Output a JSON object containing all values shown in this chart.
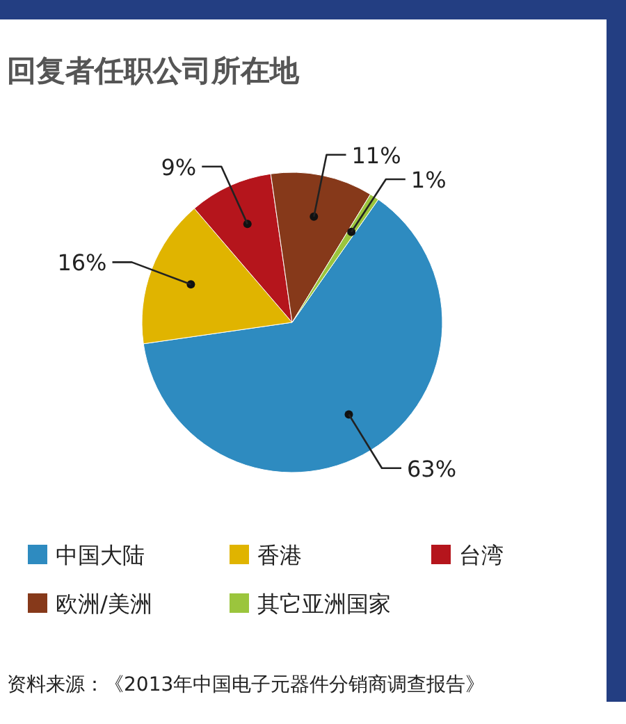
{
  "chart_data": {
    "type": "pie",
    "title": "回复者任职公司所在地",
    "categories": [
      "中国大陆",
      "香港",
      "台湾",
      "欧洲/美洲",
      "其它亚洲国家"
    ],
    "values": [
      63,
      16,
      9,
      11,
      1
    ],
    "colors": [
      "#2e8bc0",
      "#e0b400",
      "#b5151c",
      "#86391a",
      "#9bc53d"
    ],
    "value_labels": [
      "63%",
      "16%",
      "9%",
      "11%",
      "1%"
    ],
    "legend": "bottom",
    "annotations": [
      "资料来源：《2013年中国电子元器件分销商调查报告》"
    ]
  }
}
